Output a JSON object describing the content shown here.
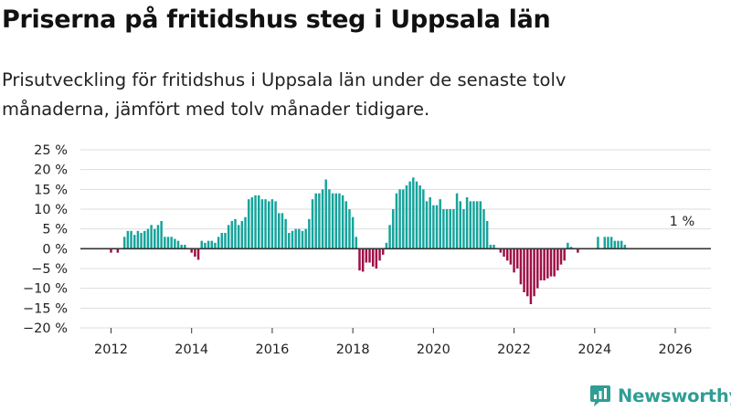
{
  "title": "Priserna på fritidshus steg i Uppsala län",
  "subtitle": "Prisutveckling för fritidshus i Uppsala län under de senaste tolv månaderna, jämfört med tolv månader tidigare.",
  "brand": {
    "name": "Newsworthy",
    "icon": "newsworthy-logo-icon"
  },
  "colors": {
    "positive": "#17a39b",
    "negative": "#9e1046",
    "grid": "#dddddd",
    "axis": "#333333",
    "text": "#222222"
  },
  "chart_data": {
    "type": "bar",
    "title": "Priserna på fritidshus steg i Uppsala län",
    "xlabel": "",
    "ylabel": "",
    "ylim": [
      -20,
      25
    ],
    "yticks": [
      -20,
      -15,
      -10,
      -5,
      0,
      5,
      10,
      15,
      20,
      25
    ],
    "ytick_labels": [
      "−20 %",
      "−15 %",
      "−10 %",
      "−5 %",
      "0 %",
      "5 %",
      "10 %",
      "15 %",
      "20 %",
      "25 %"
    ],
    "xticks": [
      2012,
      2014,
      2016,
      2018,
      2020,
      2022,
      2024,
      2026
    ],
    "xtick_labels": [
      "2012",
      "2014",
      "2016",
      "2018",
      "2020",
      "2022",
      "2024",
      "2026"
    ],
    "x_start": 2012.0,
    "x_step_years": 0.08333,
    "values": [
      -1,
      0,
      -1,
      0,
      3,
      4.5,
      4.5,
      3.5,
      4.5,
      4,
      4.5,
      5,
      6,
      5,
      6,
      7,
      3,
      3,
      3,
      2.5,
      2,
      1,
      1,
      0,
      -1,
      -2,
      -2.8,
      2,
      1.5,
      2,
      2,
      1.5,
      3,
      4,
      4,
      6,
      7,
      7.5,
      6,
      7,
      8,
      12.5,
      13,
      13.5,
      13.5,
      12.5,
      12.5,
      12,
      12.5,
      12,
      9,
      9,
      7.5,
      4,
      4.5,
      5,
      5,
      4.5,
      5,
      7.5,
      12.5,
      14,
      14,
      15,
      17.5,
      15,
      14,
      14,
      14,
      13.5,
      12,
      10,
      8,
      3,
      -5.5,
      -5.8,
      -3.5,
      -3.5,
      -4.5,
      -5,
      -3,
      -1.5,
      1.5,
      6,
      10,
      14,
      15,
      15,
      16,
      17,
      18,
      17,
      16,
      15,
      12,
      13,
      11,
      11,
      12.5,
      10,
      10,
      10,
      10,
      14,
      12,
      10,
      13,
      12,
      12,
      12,
      12,
      10,
      7,
      1,
      1,
      0,
      -1,
      -2,
      -3,
      -4,
      -6,
      -5,
      -9,
      -11,
      -12,
      -14,
      -12,
      -10,
      -8,
      -8,
      -7.5,
      -7,
      -7,
      -5.5,
      -4,
      -3,
      1.5,
      0.5,
      0,
      -1,
      0,
      0,
      0,
      0,
      0,
      3,
      0,
      3,
      3,
      3,
      2,
      2,
      2,
      1
    ],
    "annotations": [
      {
        "text": "1 %",
        "x": 2026.17,
        "y": 1
      }
    ]
  }
}
